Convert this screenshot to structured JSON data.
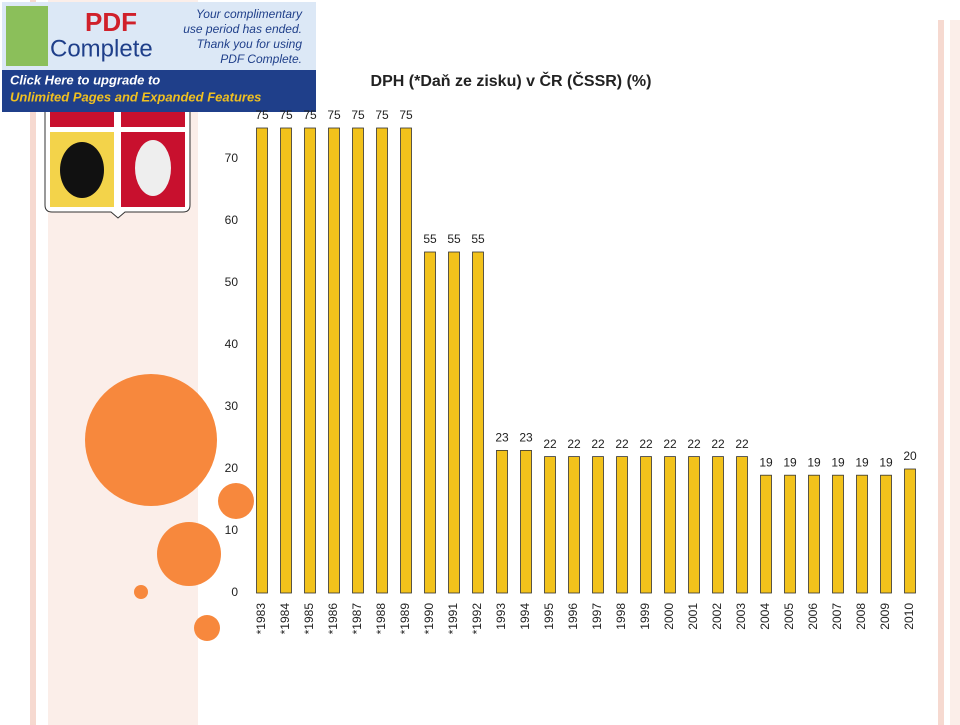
{
  "banner": {
    "logo_top": "PDF",
    "logo_bottom": "Complete",
    "notice": [
      "Your complimentary",
      "use period has ended.",
      "Thank you for using",
      "PDF Complete."
    ],
    "upgrade": [
      "Click Here to upgrade to",
      "Unlimited Pages and Expanded Features"
    ]
  },
  "chart_data": {
    "type": "bar",
    "title": "DPH (*Daň ze zisku) v ČR (ČSSR) (%)",
    "categories": [
      "*1983",
      "*1984",
      "*1985",
      "*1986",
      "*1987",
      "*1988",
      "*1989",
      "*1990",
      "*1991",
      "*1992",
      "1993",
      "1994",
      "1995",
      "1996",
      "1997",
      "1998",
      "1999",
      "2000",
      "2001",
      "2002",
      "2003",
      "2004",
      "2005",
      "2006",
      "2007",
      "2008",
      "2009",
      "2010"
    ],
    "values": [
      75,
      75,
      75,
      75,
      75,
      75,
      75,
      55,
      55,
      55,
      23,
      23,
      22,
      22,
      22,
      22,
      22,
      22,
      22,
      22,
      22,
      19,
      19,
      19,
      19,
      19,
      19,
      20
    ],
    "color": "#f2c21b",
    "ylim": [
      0,
      80
    ],
    "yticks": [
      0,
      10,
      20,
      30,
      40,
      50,
      60,
      70
    ],
    "grid": false
  }
}
